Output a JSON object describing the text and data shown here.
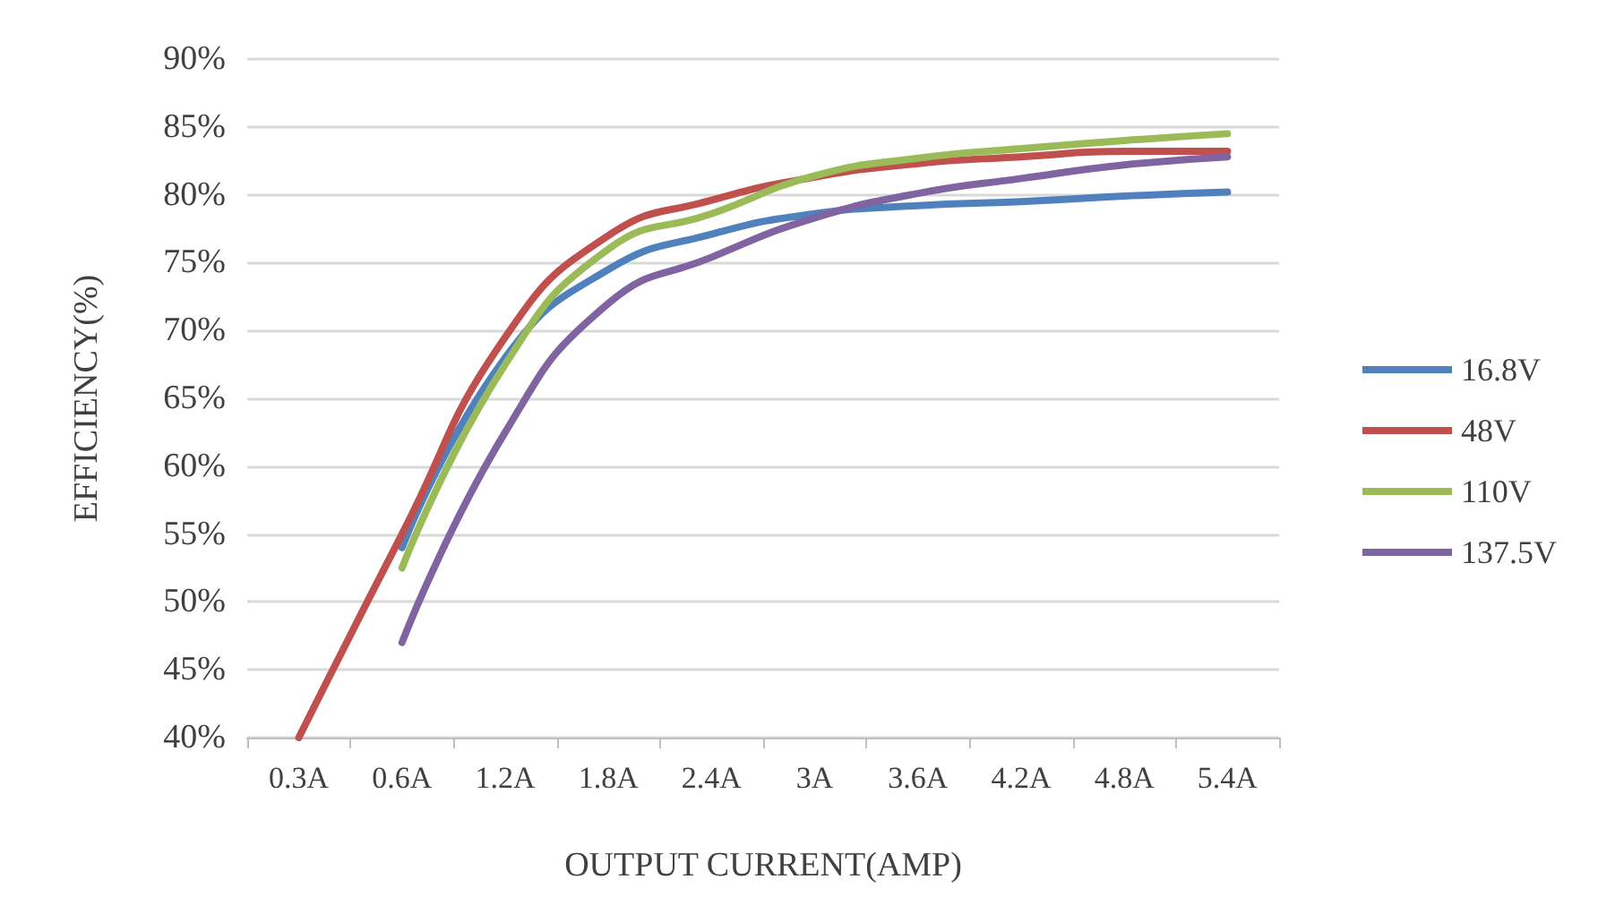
{
  "chart_data": {
    "type": "line",
    "xlabel": "OUTPUT CURRENT(AMP)",
    "ylabel": "EFFICIENCY(%)",
    "categories": [
      "0.3A",
      "0.6A",
      "1.2A",
      "1.8A",
      "2.4A",
      "3A",
      "3.6A",
      "4.2A",
      "4.8A",
      "5.4A"
    ],
    "series": [
      {
        "name": "16.8V",
        "color": "#4f81bd",
        "values": [
          null,
          54,
          68,
          74.5,
          77.1,
          78.6,
          79.2,
          79.5,
          79.9,
          80.2
        ]
      },
      {
        "name": "48V",
        "color": "#c0504d",
        "values": [
          40,
          55,
          69.5,
          77,
          79.6,
          81.3,
          82.3,
          82.8,
          83.2,
          83.2
        ]
      },
      {
        "name": "110V",
        "color": "#9bbb59",
        "values": [
          null,
          52.5,
          67.5,
          76,
          78.6,
          81.4,
          82.7,
          83.4,
          84,
          84.5
        ]
      },
      {
        "name": "137.5V",
        "color": "#8064a2",
        "values": [
          null,
          47,
          62.5,
          72,
          75.4,
          78.3,
          80.1,
          81.2,
          82.2,
          82.8
        ]
      }
    ],
    "ylim": [
      40,
      90
    ],
    "yticks": [
      {
        "value": 40,
        "label": "40%"
      },
      {
        "value": 45,
        "label": "45%"
      },
      {
        "value": 50,
        "label": "50%"
      },
      {
        "value": 55,
        "label": "55%"
      },
      {
        "value": 60,
        "label": "60%"
      },
      {
        "value": 65,
        "label": "65%"
      },
      {
        "value": 70,
        "label": "70%"
      },
      {
        "value": 75,
        "label": "75%"
      },
      {
        "value": 80,
        "label": "80%"
      },
      {
        "value": 85,
        "label": "85%"
      },
      {
        "value": 90,
        "label": "90%"
      }
    ],
    "grid": "y",
    "legend": "right",
    "marker": "none",
    "line_style": "solid"
  }
}
